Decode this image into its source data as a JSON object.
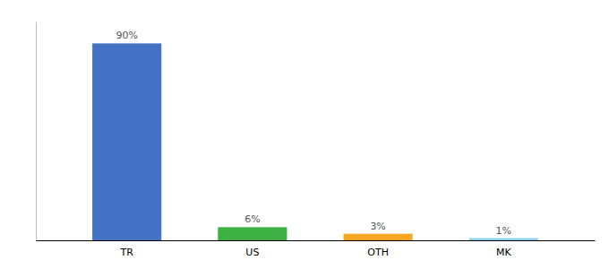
{
  "chart_data": {
    "type": "bar",
    "categories": [
      "TR",
      "US",
      "OTH",
      "MK"
    ],
    "values": [
      90,
      6,
      3,
      1
    ],
    "value_labels": [
      "90%",
      "6%",
      "3%",
      "1%"
    ],
    "colors": [
      "#4472C4",
      "#3CB043",
      "#F5A623",
      "#87CEEB"
    ],
    "ylim": [
      0,
      100
    ],
    "data_labels": true,
    "tick_labels": "x",
    "grid": false
  }
}
